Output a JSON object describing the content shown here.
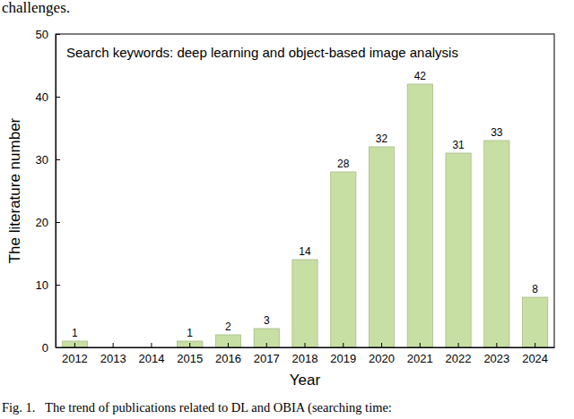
{
  "chart_data": {
    "type": "bar",
    "annotation": "Search keywords: deep learning and object-based image analysis",
    "x_label": "Year",
    "y_label": "The literature number",
    "categories": [
      "2012",
      "2013",
      "2014",
      "2015",
      "2016",
      "2017",
      "2018",
      "2019",
      "2020",
      "2021",
      "2022",
      "2023",
      "2024"
    ],
    "values": [
      1,
      0,
      0,
      1,
      2,
      3,
      14,
      28,
      32,
      42,
      31,
      33,
      8
    ],
    "value_labels": [
      "1",
      null,
      null,
      "1",
      "2",
      "3",
      "14",
      "28",
      "32",
      "42",
      "31",
      "33",
      "8"
    ],
    "color": "#c8dfa4",
    "ylim": [
      0,
      50
    ],
    "yticks": [
      0,
      10,
      20,
      30,
      40,
      50
    ],
    "grid": false,
    "data_labels": true
  },
  "page": {
    "text_above": "challenges.",
    "caption": "Fig. 1.   The trend of publications related to DL and OBIA (searching time:"
  }
}
